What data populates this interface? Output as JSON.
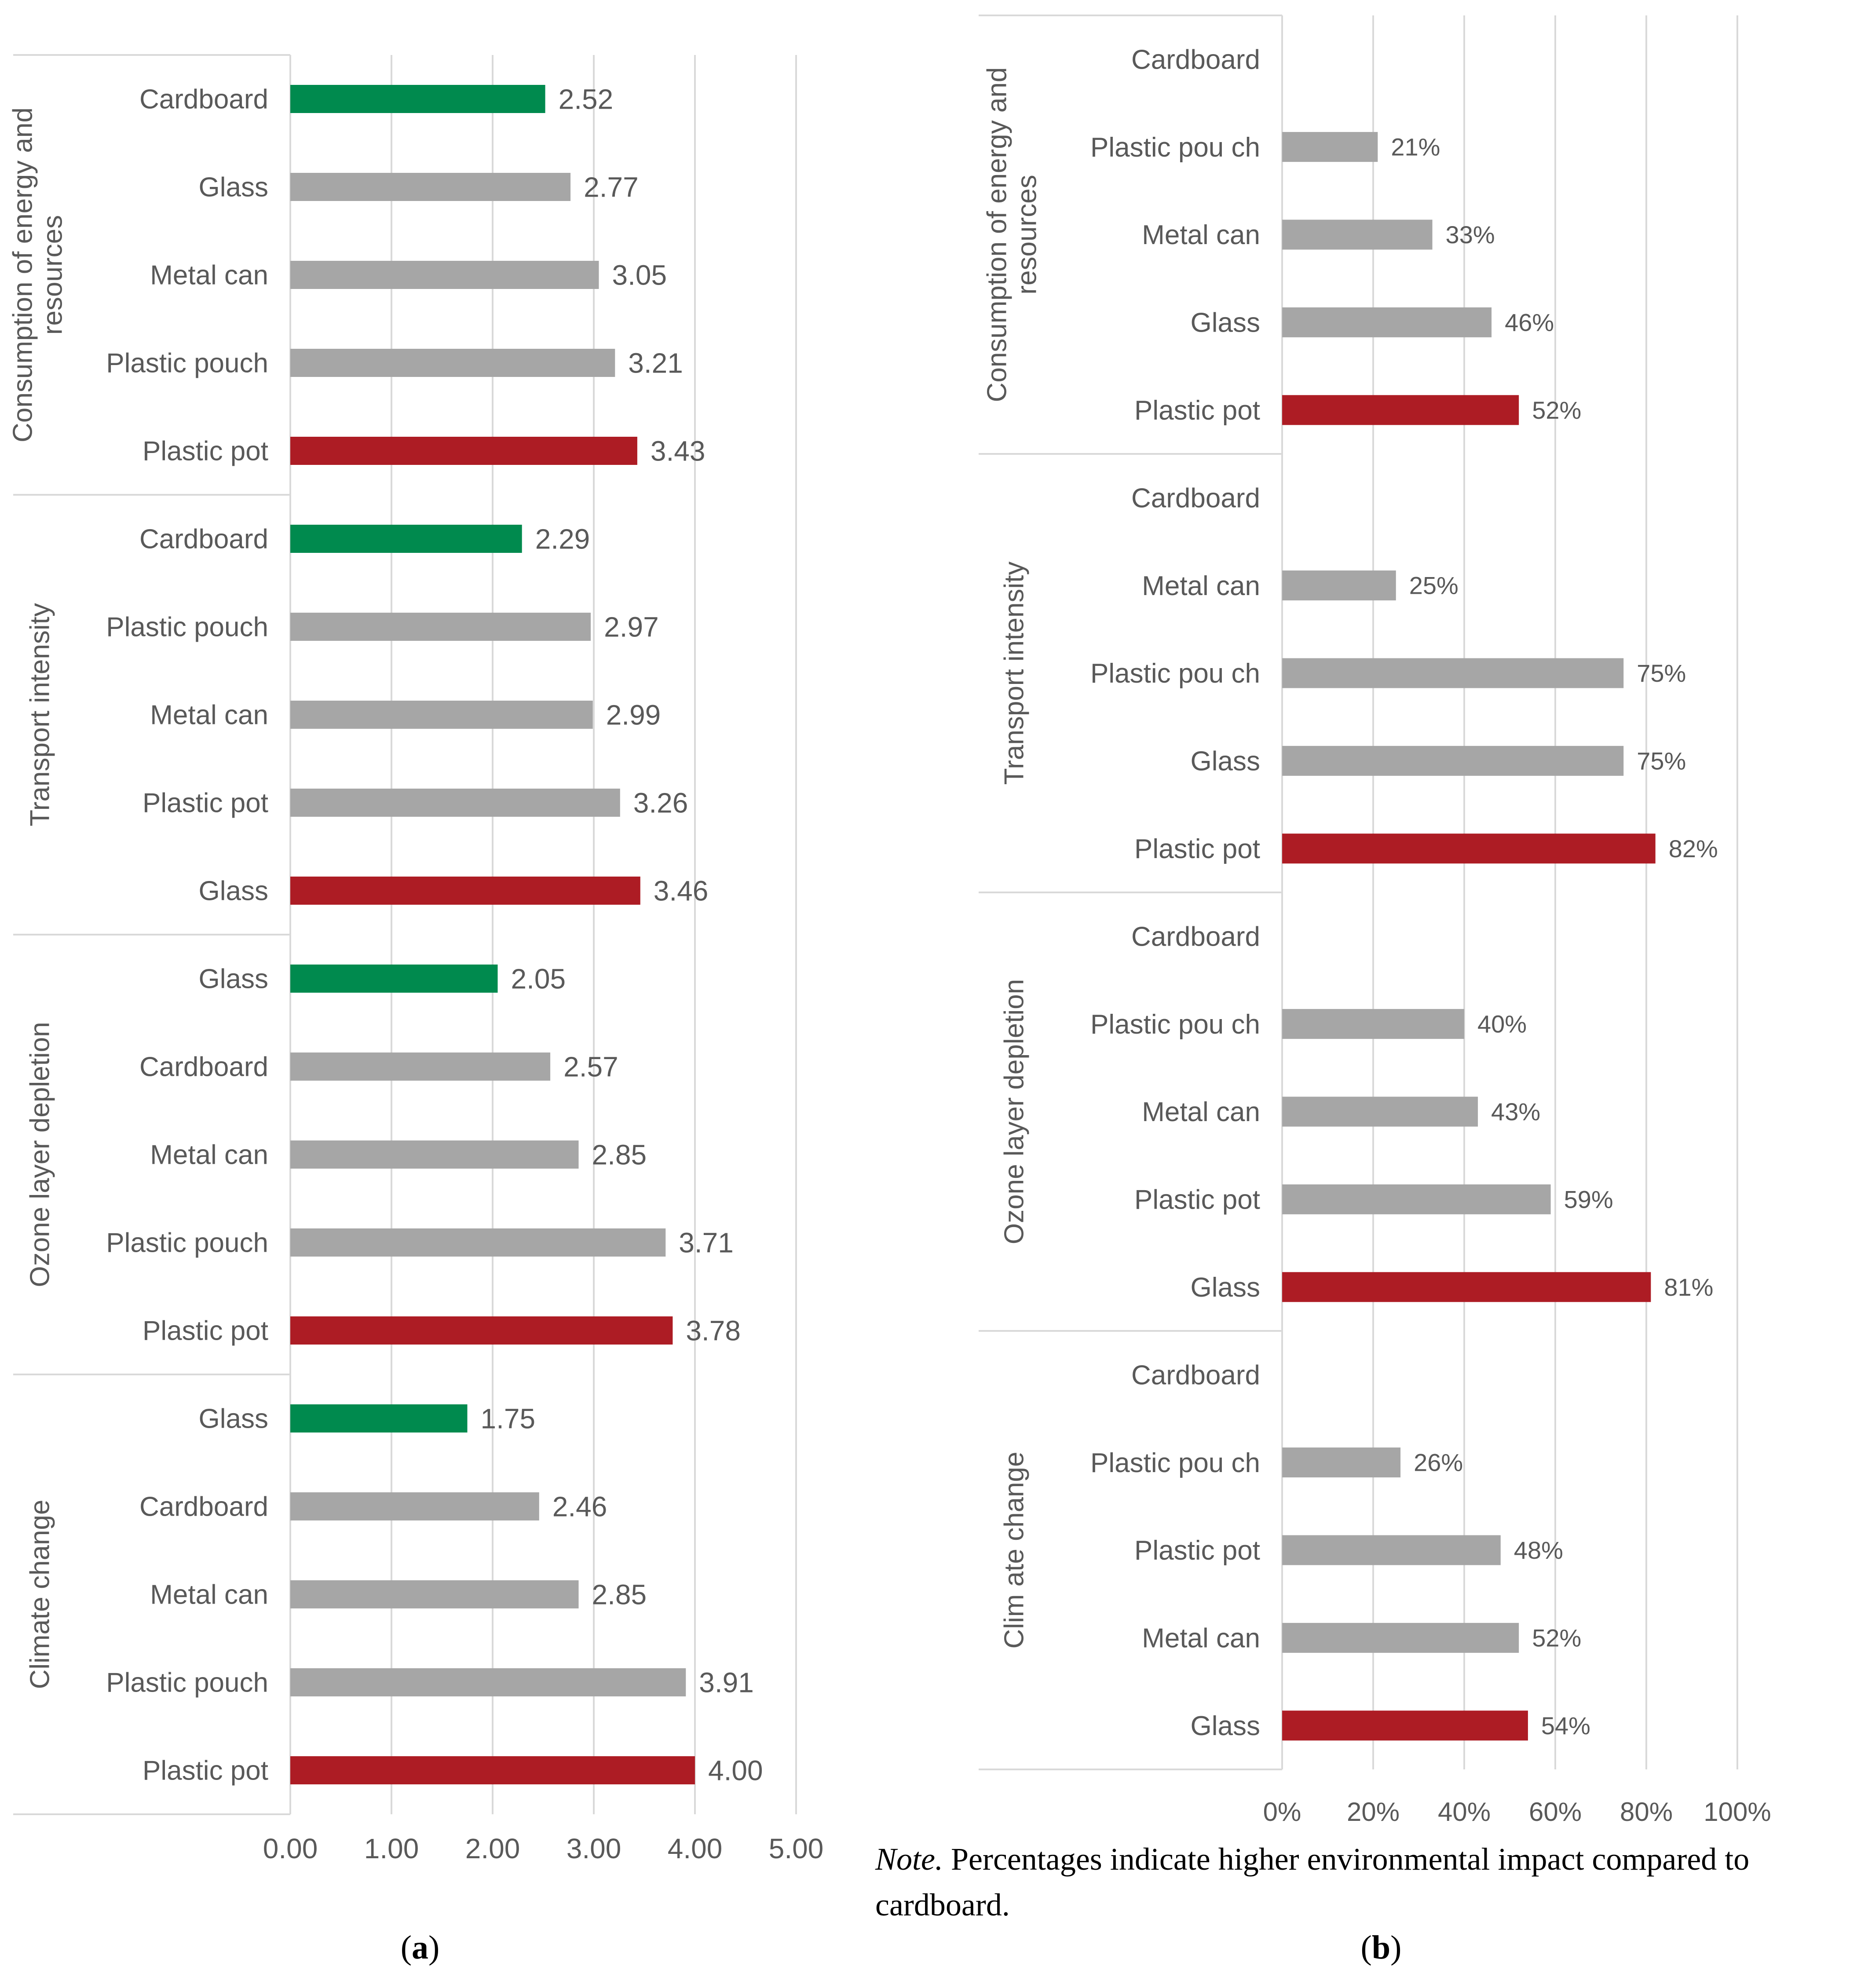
{
  "figure_caption": {
    "note_label": "Note.",
    "note_text": "Percentages indicate higher environmental impact compared to cardboard.",
    "sub_a": "a",
    "sub_b": "b"
  },
  "colors": {
    "best": "#008a4e",
    "neutral": "#a6a6a6",
    "worst": "#ad1c24",
    "grid": "#d9d9d9",
    "text": "#595959"
  },
  "chart_data": [
    {
      "id": "a",
      "type": "bar",
      "orientation": "horizontal",
      "xlim": [
        0,
        5
      ],
      "x_ticks": [
        "0.00",
        "1.00",
        "2.00",
        "3.00",
        "4.00",
        "5.00"
      ],
      "groups": [
        {
          "label": "Consumption of energy and resources",
          "categories": [
            "Cardboard",
            "Glass",
            "Metal can",
            "Plastic pouch",
            "Plastic pot"
          ],
          "values": [
            2.52,
            2.77,
            3.05,
            3.21,
            3.43
          ],
          "labels": [
            "2.52",
            "2.77",
            "3.05",
            "3.21",
            "3.43"
          ],
          "roles": [
            "best",
            "neutral",
            "neutral",
            "neutral",
            "worst"
          ]
        },
        {
          "label": "Transport intensity",
          "categories": [
            "Cardboard",
            "Plastic pouch",
            "Metal can",
            "Plastic pot",
            "Glass"
          ],
          "values": [
            2.29,
            2.97,
            2.99,
            3.26,
            3.46
          ],
          "labels": [
            "2.29",
            "2.97",
            "2.99",
            "3.26",
            "3.46"
          ],
          "roles": [
            "best",
            "neutral",
            "neutral",
            "neutral",
            "worst"
          ]
        },
        {
          "label": "Ozone layer depletion",
          "categories": [
            "Glass",
            "Cardboard",
            "Metal can",
            "Plastic pouch",
            "Plastic pot"
          ],
          "values": [
            2.05,
            2.57,
            2.85,
            3.71,
            3.78
          ],
          "labels": [
            "2.05",
            "2.57",
            "2.85",
            "3.71",
            "3.78"
          ],
          "roles": [
            "best",
            "neutral",
            "neutral",
            "neutral",
            "worst"
          ]
        },
        {
          "label": "Climate change",
          "categories": [
            "Glass",
            "Cardboard",
            "Metal can",
            "Plastic pouch",
            "Plastic pot"
          ],
          "values": [
            1.75,
            2.46,
            2.85,
            3.91,
            4.0
          ],
          "labels": [
            "1.75",
            "2.46",
            "2.85",
            "3.91",
            "4.00"
          ],
          "roles": [
            "best",
            "neutral",
            "neutral",
            "neutral",
            "worst"
          ]
        }
      ]
    },
    {
      "id": "b",
      "type": "bar",
      "orientation": "horizontal",
      "xlim": [
        0,
        100
      ],
      "x_ticks": [
        "0%",
        "20%",
        "40%",
        "60%",
        "80%",
        "100%"
      ],
      "groups": [
        {
          "label": "Consumption of energy and resources",
          "categories": [
            "Cardboard",
            "Plastic pou ch",
            "Metal can",
            "Glass",
            "Plastic pot"
          ],
          "values": [
            null,
            21,
            33,
            46,
            52
          ],
          "labels": [
            "",
            "21%",
            "33%",
            "46%",
            "52%"
          ],
          "roles": [
            "none",
            "neutral",
            "neutral",
            "neutral",
            "worst"
          ]
        },
        {
          "label": "Transport intensity",
          "categories": [
            "Cardboard",
            "Metal can",
            "Plastic pou ch",
            "Glass",
            "Plastic pot"
          ],
          "values": [
            null,
            25,
            75,
            75,
            82
          ],
          "labels": [
            "",
            "25%",
            "75%",
            "75%",
            "82%"
          ],
          "roles": [
            "none",
            "neutral",
            "neutral",
            "neutral",
            "worst"
          ]
        },
        {
          "label": "Ozone layer depletion",
          "categories": [
            "Cardboard",
            "Plastic pou ch",
            "Metal can",
            "Plastic pot",
            "Glass"
          ],
          "values": [
            null,
            40,
            43,
            59,
            81
          ],
          "labels": [
            "",
            "40%",
            "43%",
            "59%",
            "81%"
          ],
          "roles": [
            "none",
            "neutral",
            "neutral",
            "neutral",
            "worst"
          ]
        },
        {
          "label": "Clim ate change",
          "categories": [
            "Cardboard",
            "Plastic pou ch",
            "Plastic pot",
            "Metal can",
            "Glass"
          ],
          "values": [
            null,
            26,
            48,
            52,
            54
          ],
          "labels": [
            "",
            "26%",
            "48%",
            "52%",
            "54%"
          ],
          "roles": [
            "none",
            "neutral",
            "neutral",
            "neutral",
            "worst"
          ]
        }
      ]
    }
  ]
}
